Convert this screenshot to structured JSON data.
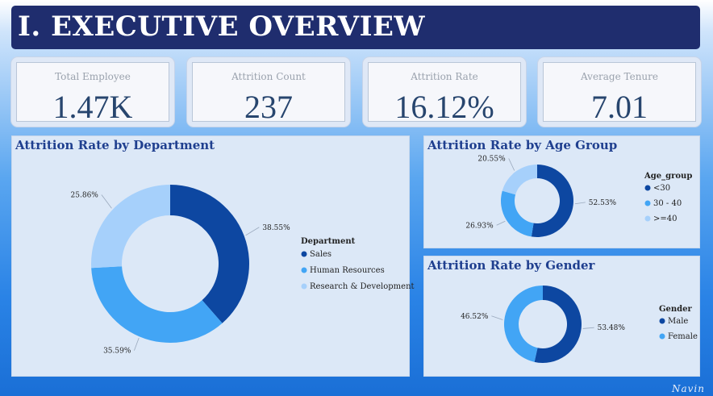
{
  "header": {
    "title": "I. EXECUTIVE OVERVIEW"
  },
  "kpis": [
    {
      "label": "Total Employee",
      "value": "1.47K"
    },
    {
      "label": "Attrition Count",
      "value": "237"
    },
    {
      "label": "Attrition Rate",
      "value": "16.12%"
    },
    {
      "label": "Average Tenure",
      "value": "7.01"
    }
  ],
  "colors": {
    "dark": "#0d47a1",
    "mid": "#42a5f5",
    "light": "#a6d0fb"
  },
  "signature": "Navin",
  "chart_data": [
    {
      "type": "pie",
      "title": "Attrition Rate by Department",
      "legend_title": "Department",
      "categories": [
        "Sales",
        "Human Resources",
        "Research & Development"
      ],
      "values": [
        38.55,
        35.59,
        25.86
      ],
      "labels": [
        "38.55%",
        "35.59%",
        "25.86%"
      ],
      "legend_position": "right"
    },
    {
      "type": "pie",
      "title": "Attrition Rate by Age Group",
      "legend_title": "Age_group",
      "categories": [
        "<30",
        "30 - 40",
        ">=40"
      ],
      "values": [
        52.53,
        26.93,
        20.55
      ],
      "labels": [
        "52.53%",
        "26.93%",
        "20.55%"
      ],
      "legend_position": "right"
    },
    {
      "type": "pie",
      "title": "Attrition Rate by Gender",
      "legend_title": "Gender",
      "categories": [
        "Male",
        "Female"
      ],
      "values": [
        53.48,
        46.52
      ],
      "labels": [
        "53.48%",
        "46.52%"
      ],
      "legend_position": "right"
    }
  ]
}
